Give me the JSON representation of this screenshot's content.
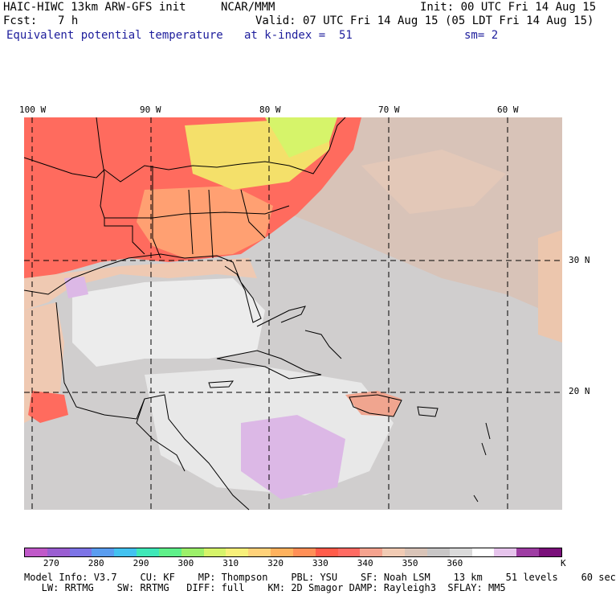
{
  "header": {
    "model": "HAIC-HIWC 13km ARW-GFS init",
    "org": "NCAR/MMM",
    "init": "Init: 00 UTC Fri 14 Aug 15",
    "fcst_label": "Fcst:",
    "fcst_value": "7 h",
    "valid": "Valid: 07 UTC Fri 14 Aug 15 (05 LDT Fri 14 Aug 15)",
    "field": "Equivalent potential temperature",
    "k_index": "at k-index =  51",
    "smoothing": "sm= 2"
  },
  "map": {
    "lon_labels": [
      "100 W",
      "90 W",
      "80 W",
      "70 W",
      "60 W"
    ],
    "lat_labels": [
      "30 N",
      "20 N"
    ]
  },
  "colorbar": {
    "colors": [
      "#c059c9",
      "#9a5ed1",
      "#7d74e6",
      "#5a9df0",
      "#43c2f0",
      "#3fe8b8",
      "#5ff08a",
      "#9cf06a",
      "#d6f46a",
      "#f8f07a",
      "#ffd27a",
      "#ffb25e",
      "#ff8f57",
      "#ff5c4a",
      "#ff6b63",
      "#f5a38f",
      "#f1cbb4",
      "#d9c4b8",
      "#c8c6c6",
      "#dadada",
      "#ffffff",
      "#e6c4ec",
      "#9e3da3",
      "#7a0f7a"
    ],
    "tick_labels": [
      "270",
      "280",
      "290",
      "300",
      "310",
      "320",
      "330",
      "340",
      "350",
      "360"
    ],
    "unit": "K"
  },
  "footer": {
    "line1": "Model Info: V3.7    CU: KF    MP: Thompson    PBL: YSU    SF: Noah LSM    13 km    51 levels    60 sec",
    "line2": "   LW: RRTMG    SW: RRTMG   DIFF: full    KM: 2D Smagor DAMP: Rayleigh3  SFLAY: MM5"
  },
  "colors": {
    "warm_red": "#ff6b5e",
    "orange": "#ffa072",
    "yellow": "#f4e06a",
    "peach": "#efc9b2",
    "tan": "#d6c1b5",
    "gray": "#c9c7c7",
    "light_gray": "#e8e8e8",
    "lavender": "#dcb8e6"
  }
}
